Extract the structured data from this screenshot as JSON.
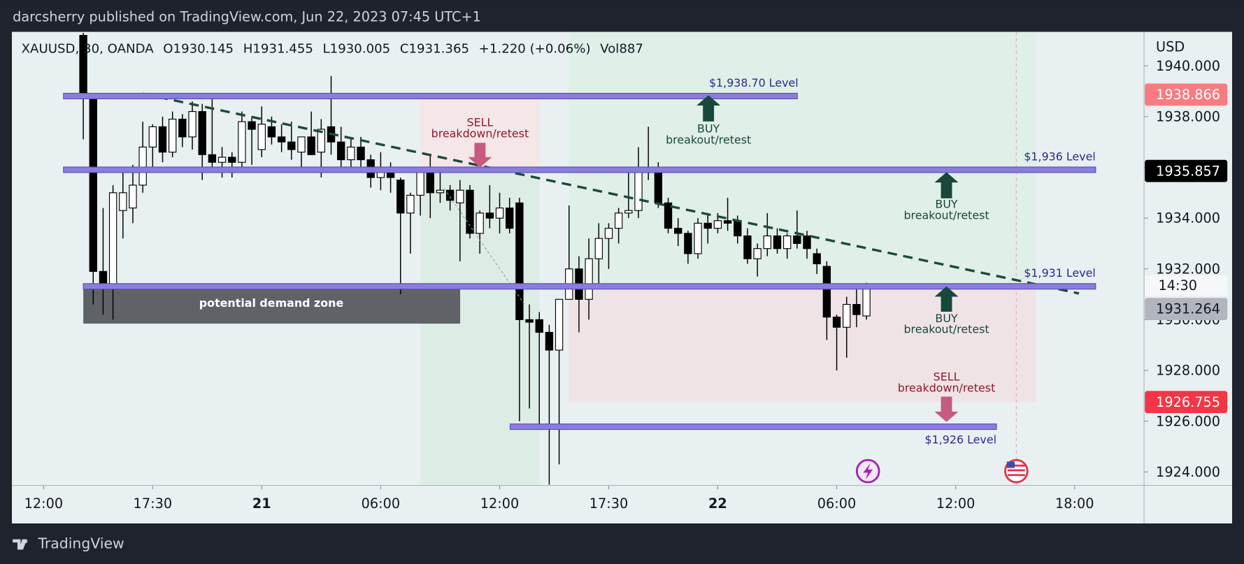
{
  "header": {
    "publisher": "darcsherry published on TradingView.com, Jun 22, 2023 07:45 UTC+1",
    "brand": "TradingView"
  },
  "chart_data": {
    "type": "candlestick",
    "legend": [
      "XAUUSD, 30, OANDA",
      "O1930.145",
      "H1931.455",
      "L1930.005",
      "C1931.365",
      "+1.220 (+0.06%)",
      "Vol887"
    ],
    "currency": "USD",
    "countdown": "14:30",
    "open": [
      1941.2,
      1938.7,
      1931.9,
      1931.4,
      1934.3,
      1934.4,
      1935.3,
      1936.8,
      1937.6,
      1936.6,
      1937.9,
      1937.2,
      1938.2,
      1936.5,
      1936.2,
      1936.4,
      1936.2,
      1937.8,
      1936.7,
      1937.6,
      1937.2,
      1937.0,
      1936.6,
      1937.2,
      1936.6,
      1937.6,
      1937.0,
      1936.3,
      1936.8,
      1936.3,
      1935.6,
      1935.8,
      1935.5,
      1934.2,
      1934.9,
      1936.0,
      1935.0,
      1935.1,
      1934.6,
      1935.1,
      1933.4,
      1934.2,
      1934.0,
      1934.4,
      1934.6,
      1930.0,
      1930.0,
      1929.5,
      1928.8,
      1930.8,
      1932.0,
      1930.8,
      1932.4,
      1933.2,
      1933.6,
      1934.2,
      1934.3,
      1935.8,
      1935.9,
      1934.6,
      1933.6,
      1933.4,
      1932.6,
      1933.8,
      1933.6,
      1933.9,
      1933.9,
      1933.3,
      1932.4,
      1932.8,
      1933.3,
      1932.8,
      1933.3,
      1933.3,
      1932.6,
      1932.1,
      1930.1,
      1929.7,
      1930.6,
      1930.145
    ],
    "high": [
      1941.3,
      1938.8,
      1934.4,
      1935.3,
      1935.9,
      1936.1,
      1937.8,
      1937.7,
      1938.0,
      1938.2,
      1938.1,
      1938.6,
      1938.5,
      1938.9,
      1936.8,
      1936.6,
      1938.2,
      1938.0,
      1938.4,
      1938.0,
      1937.7,
      1937.8,
      1937.2,
      1938.2,
      1937.9,
      1939.6,
      1937.6,
      1937.2,
      1937.2,
      1936.5,
      1936.6,
      1936.2,
      1935.6,
      1935.0,
      1936.0,
      1936.5,
      1935.8,
      1935.3,
      1935.5,
      1935.3,
      1934.3,
      1935.3,
      1935.0,
      1934.8,
      1934.8,
      1930.6,
      1930.3,
      1929.8,
      1930.8,
      1934.5,
      1932.5,
      1933.2,
      1933.8,
      1933.8,
      1934.4,
      1935.8,
      1936.8,
      1937.6,
      1936.2,
      1934.8,
      1934.0,
      1933.5,
      1934.0,
      1934.2,
      1934.2,
      1934.8,
      1934.1,
      1933.6,
      1933.0,
      1934.2,
      1933.6,
      1933.4,
      1934.3,
      1933.5,
      1932.8,
      1932.3,
      1930.2,
      1930.9,
      1931.4,
      1931.455
    ],
    "low": [
      1937.1,
      1930.6,
      1930.2,
      1930.0,
      1933.2,
      1933.8,
      1935.0,
      1936.0,
      1936.2,
      1936.4,
      1936.8,
      1936.7,
      1935.5,
      1935.9,
      1935.6,
      1935.6,
      1935.8,
      1936.1,
      1936.4,
      1936.9,
      1936.6,
      1936.3,
      1936.0,
      1936.5,
      1935.6,
      1936.5,
      1936.0,
      1936.0,
      1936.0,
      1935.2,
      1935.1,
      1935.0,
      1931.0,
      1932.6,
      1934.1,
      1934.0,
      1934.6,
      1934.3,
      1932.3,
      1933.2,
      1932.6,
      1933.6,
      1933.4,
      1933.4,
      1926.0,
      1926.5,
      1925.7,
      1923.5,
      1924.3,
      1930.8,
      1929.5,
      1930.0,
      1931.2,
      1932.0,
      1933.0,
      1934.0,
      1934.0,
      1935.5,
      1934.4,
      1933.4,
      1932.9,
      1932.2,
      1932.4,
      1933.0,
      1933.4,
      1933.5,
      1933.0,
      1932.2,
      1931.7,
      1932.5,
      1932.6,
      1932.4,
      1932.8,
      1932.4,
      1931.8,
      1929.2,
      1928.0,
      1928.5,
      1929.7,
      1930.005
    ],
    "close": [
      1938.8,
      1931.9,
      1931.4,
      1935.0,
      1935.0,
      1935.3,
      1936.8,
      1937.6,
      1936.6,
      1937.9,
      1937.2,
      1938.2,
      1936.5,
      1936.2,
      1936.4,
      1936.2,
      1937.8,
      1937.5,
      1937.7,
      1937.2,
      1937.0,
      1936.7,
      1937.2,
      1936.5,
      1937.5,
      1937.0,
      1936.3,
      1936.8,
      1936.3,
      1935.6,
      1935.8,
      1935.6,
      1934.2,
      1934.9,
      1936.0,
      1935.0,
      1935.1,
      1934.7,
      1935.1,
      1933.4,
      1934.2,
      1934.0,
      1934.4,
      1933.6,
      1930.0,
      1929.9,
      1929.5,
      1928.8,
      1930.8,
      1932.0,
      1930.8,
      1932.4,
      1933.2,
      1933.6,
      1934.2,
      1934.3,
      1935.8,
      1935.9,
      1934.6,
      1933.6,
      1933.4,
      1932.6,
      1933.8,
      1933.6,
      1933.9,
      1933.8,
      1933.3,
      1932.4,
      1932.8,
      1933.3,
      1932.8,
      1933.3,
      1933.0,
      1932.8,
      1932.2,
      1930.1,
      1929.7,
      1930.6,
      1930.2,
      1931.365
    ],
    "up_color": "#ffffff",
    "down_color": "#000000",
    "xlim": [
      -7.2,
      107
    ],
    "xticks": [
      {
        "value": -4,
        "label": "12:00"
      },
      {
        "value": 7,
        "label": "17:30"
      },
      {
        "value": 18,
        "label": "21"
      },
      {
        "value": 30,
        "label": "06:00"
      },
      {
        "value": 42,
        "label": "12:00"
      },
      {
        "value": 53,
        "label": "17:30"
      },
      {
        "value": 64,
        "label": "22"
      },
      {
        "value": 76,
        "label": "06:00"
      },
      {
        "value": 88,
        "label": "12:00"
      },
      {
        "value": 100,
        "label": "18:00"
      }
    ],
    "ylim": [
      1923.47,
      1941.34
    ],
    "yticks": [
      {
        "value": 1924,
        "label": "1924.000"
      },
      {
        "value": 1926,
        "label": "1926.000"
      },
      {
        "value": 1928,
        "label": "1928.000"
      },
      {
        "value": 1930,
        "label": "1930.000"
      },
      {
        "value": 1932,
        "label": "1932.000"
      },
      {
        "value": 1934,
        "label": "1934.000"
      },
      {
        "value": 1936,
        "label": "1936.000"
      },
      {
        "value": 1938,
        "label": "1938.000"
      },
      {
        "value": 1940,
        "label": "1940.000"
      }
    ],
    "price_labels": [
      {
        "value": 1938.866,
        "label": "1938.866",
        "color": "#f77c80"
      },
      {
        "value": 1935.857,
        "label": "1935.857",
        "color": "#000000"
      },
      {
        "value": 1931.264,
        "label": "1931.264",
        "color": "#b2b5be"
      },
      {
        "value": 1926.755,
        "label": "1926.755",
        "color": "#f23645"
      }
    ],
    "levels": [
      "$1,938.70 Level",
      "$1,936 Level",
      "$1,931 Level",
      "$1,926 Level"
    ],
    "annotations": [
      [
        "SELL",
        "breakdown/retest"
      ],
      [
        "BUY",
        "breakout/retest"
      ],
      [
        "BUY",
        "breakout/retest"
      ],
      [
        "BUY",
        "breakout/retest"
      ],
      [
        "SELL",
        "breakdown/retest"
      ]
    ],
    "zone_label": "potential demand zone"
  }
}
